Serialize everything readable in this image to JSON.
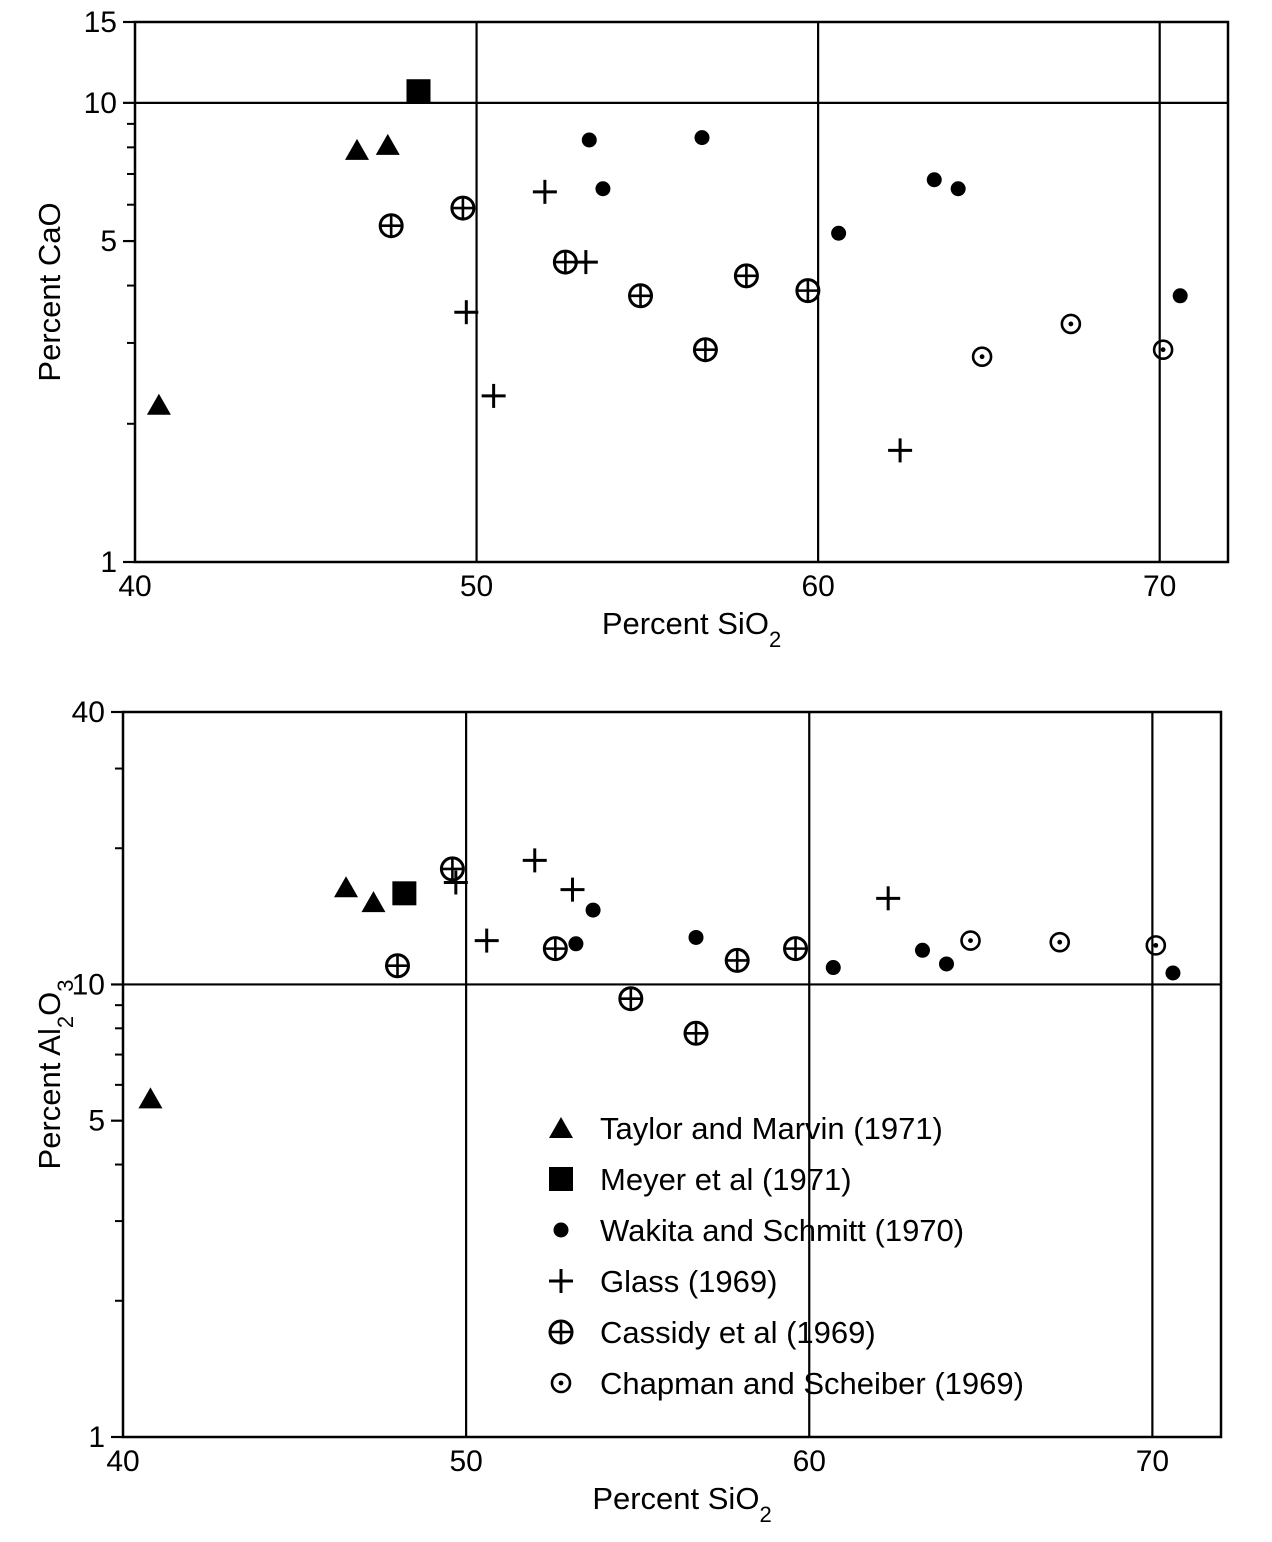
{
  "chart_data": [
    {
      "type": "scatter",
      "title": "",
      "xlabel": "Percent SiO",
      "xlabel_sub": "2",
      "ylabel": "Percent CaO",
      "ylabel_sub": "",
      "yscale": "log",
      "xlim": [
        40,
        72
      ],
      "ylim": [
        1,
        15
      ],
      "xticks": [
        {
          "value": 40,
          "label": "40"
        },
        {
          "value": 50,
          "label": "50"
        },
        {
          "value": 60,
          "label": "60"
        },
        {
          "value": 70,
          "label": "70"
        }
      ],
      "yticks": [
        {
          "value": 1,
          "label": "1"
        },
        {
          "value": 5,
          "label": "5"
        },
        {
          "value": 10,
          "label": "10"
        },
        {
          "value": 15,
          "label": "15"
        }
      ],
      "minor_yticks": [
        2,
        3,
        4,
        6,
        7,
        8,
        9
      ],
      "grid": true,
      "grid_x": [
        50,
        60,
        70
      ],
      "grid_y": [
        10
      ],
      "series": [
        {
          "name": "Taylor and Marvin (1971)",
          "marker": "triangle",
          "points": [
            [
              40.7,
              2.2
            ],
            [
              46.5,
              7.9
            ],
            [
              47.4,
              8.1
            ]
          ]
        },
        {
          "name": "Meyer et al (1971)",
          "marker": "square",
          "points": [
            [
              48.3,
              10.6
            ]
          ]
        },
        {
          "name": "Wakita and Schmitt (1970)",
          "marker": "dot",
          "points": [
            [
              53.3,
              8.3
            ],
            [
              53.7,
              6.5
            ],
            [
              56.6,
              8.4
            ],
            [
              60.6,
              5.2
            ],
            [
              63.4,
              6.8
            ],
            [
              64.1,
              6.5
            ],
            [
              70.6,
              3.8
            ]
          ]
        },
        {
          "name": "Glass (1969)",
          "marker": "plus",
          "points": [
            [
              49.7,
              3.5
            ],
            [
              50.5,
              2.3
            ],
            [
              52.0,
              6.4
            ],
            [
              53.2,
              4.5
            ],
            [
              62.4,
              1.75
            ]
          ]
        },
        {
          "name": "Cassidy et al (1969)",
          "marker": "circle-plus",
          "points": [
            [
              47.5,
              5.4
            ],
            [
              49.6,
              5.9
            ],
            [
              52.6,
              4.5
            ],
            [
              54.8,
              3.8
            ],
            [
              56.7,
              2.9
            ],
            [
              57.9,
              4.2
            ],
            [
              59.7,
              3.9
            ]
          ]
        },
        {
          "name": "Chapman and Scheiber (1969)",
          "marker": "circle-dot",
          "points": [
            [
              64.8,
              2.8
            ],
            [
              67.4,
              3.3
            ],
            [
              70.1,
              2.9
            ]
          ]
        }
      ]
    },
    {
      "type": "scatter",
      "title": "",
      "xlabel": "Percent SiO",
      "xlabel_sub": "2",
      "ylabel": "Percent Al",
      "ylabel_sub": "2",
      "ylabel_mid": "O",
      "ylabel_sub2": "3",
      "yscale": "log",
      "xlim": [
        40,
        72
      ],
      "ylim": [
        1,
        40
      ],
      "xticks": [
        {
          "value": 40,
          "label": "40"
        },
        {
          "value": 50,
          "label": "50"
        },
        {
          "value": 60,
          "label": "60"
        },
        {
          "value": 70,
          "label": "70"
        }
      ],
      "yticks": [
        {
          "value": 1,
          "label": "1"
        },
        {
          "value": 5,
          "label": "5"
        },
        {
          "value": 10,
          "label": "10"
        },
        {
          "value": 40,
          "label": "40"
        }
      ],
      "minor_yticks": [
        2,
        3,
        4,
        6,
        7,
        8,
        9,
        20,
        30
      ],
      "grid": true,
      "grid_x": [
        50,
        60,
        70
      ],
      "grid_y": [
        10
      ],
      "legend_position": "lower-right",
      "series": [
        {
          "name": "Taylor and Marvin (1971)",
          "marker": "triangle",
          "points": [
            [
              40.8,
              5.6
            ],
            [
              46.5,
              16.4
            ],
            [
              47.3,
              15.2
            ]
          ]
        },
        {
          "name": "Meyer et al (1971)",
          "marker": "square",
          "points": [
            [
              48.2,
              15.9
            ]
          ]
        },
        {
          "name": "Wakita and Schmitt (1970)",
          "marker": "dot",
          "points": [
            [
              53.2,
              12.3
            ],
            [
              53.7,
              14.6
            ],
            [
              56.7,
              12.7
            ],
            [
              60.7,
              10.9
            ],
            [
              63.3,
              11.9
            ],
            [
              64.0,
              11.1
            ],
            [
              70.6,
              10.6
            ]
          ]
        },
        {
          "name": "Glass (1969)",
          "marker": "plus",
          "points": [
            [
              49.7,
              16.8
            ],
            [
              50.6,
              12.5
            ],
            [
              52.0,
              18.8
            ],
            [
              53.1,
              16.2
            ],
            [
              62.3,
              15.5
            ]
          ]
        },
        {
          "name": "Cassidy et al (1969)",
          "marker": "circle-plus",
          "points": [
            [
              48.0,
              11.0
            ],
            [
              49.6,
              18.0
            ],
            [
              52.6,
              12.0
            ],
            [
              54.8,
              9.3
            ],
            [
              56.7,
              7.8
            ],
            [
              57.9,
              11.3
            ],
            [
              59.6,
              12.0
            ]
          ]
        },
        {
          "name": "Chapman and Scheiber (1969)",
          "marker": "circle-dot",
          "points": [
            [
              64.7,
              12.5
            ],
            [
              67.3,
              12.4
            ],
            [
              70.1,
              12.2
            ]
          ]
        }
      ]
    }
  ],
  "legend": [
    {
      "marker": "triangle",
      "label": "Taylor and Marvin (1971)"
    },
    {
      "marker": "square",
      "label": "Meyer et al (1971)"
    },
    {
      "marker": "dot",
      "label": "Wakita and Schmitt (1970)"
    },
    {
      "marker": "plus",
      "label": "Glass (1969)"
    },
    {
      "marker": "circle-plus",
      "label": "Cassidy et al (1969)"
    },
    {
      "marker": "circle-dot",
      "label": "Chapman and Scheiber (1969)"
    }
  ]
}
